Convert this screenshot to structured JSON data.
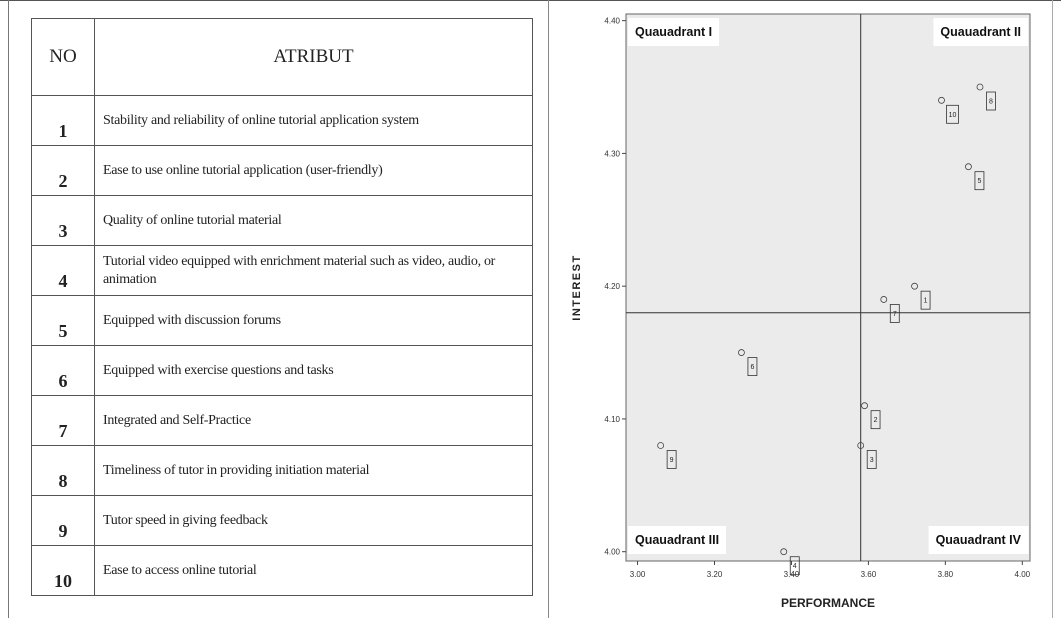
{
  "table": {
    "header_no": "NO",
    "header_attribute": "ATRIBUT",
    "rows": [
      {
        "no": "1",
        "attribute": "Stability and reliability of online tutorial application system"
      },
      {
        "no": "2",
        "attribute": "Ease to use online tutorial application (user-friendly)"
      },
      {
        "no": "3",
        "attribute": "Quality of  online tutorial material"
      },
      {
        "no": "4",
        "attribute": "Tutorial video equipped with enrichment material such as video, audio, or animation"
      },
      {
        "no": "5",
        "attribute": "Equipped with discussion forums"
      },
      {
        "no": "6",
        "attribute": "Equipped with exercise questions and tasks"
      },
      {
        "no": "7",
        "attribute": "Integrated and Self-Practice"
      },
      {
        "no": "8",
        "attribute": "Timeliness of tutor in providing initiation material"
      },
      {
        "no": "9",
        "attribute": "Tutor speed in giving feedback"
      },
      {
        "no": "10",
        "attribute": "Ease to access  online tutorial"
      }
    ]
  },
  "chart_data": {
    "type": "scatter",
    "title": "",
    "xlabel": "PERFORMANCE",
    "ylabel": "INTEREST",
    "xlim": [
      2.97,
      4.02
    ],
    "ylim": [
      3.993,
      4.405
    ],
    "xticks": [
      "3.00",
      "3.20",
      "3.40",
      "3.60",
      "3.80",
      "4.00"
    ],
    "yticks": [
      "4.00",
      "4.10",
      "4.20",
      "4.30",
      "4.40"
    ],
    "xtick_values": [
      3.0,
      3.2,
      3.4,
      3.6,
      3.8,
      4.0
    ],
    "ytick_values": [
      4.0,
      4.1,
      4.2,
      4.3,
      4.4
    ],
    "reference_lines": {
      "x": 3.58,
      "y": 4.18
    },
    "quadrants": [
      {
        "label": "Quauadrant I",
        "corner": "top-left"
      },
      {
        "label": "Quauadrant II",
        "corner": "top-right"
      },
      {
        "label": "Quauadrant III",
        "corner": "bottom-left"
      },
      {
        "label": "Quauadrant IV",
        "corner": "bottom-right"
      }
    ],
    "points": [
      {
        "label": "10",
        "x": 3.79,
        "y": 4.34
      },
      {
        "label": "8",
        "x": 3.89,
        "y": 4.35
      },
      {
        "label": "5",
        "x": 3.86,
        "y": 4.29
      },
      {
        "label": "7",
        "x": 3.64,
        "y": 4.19
      },
      {
        "label": "1",
        "x": 3.72,
        "y": 4.2
      },
      {
        "label": "6",
        "x": 3.27,
        "y": 4.15
      },
      {
        "label": "2",
        "x": 3.59,
        "y": 4.11
      },
      {
        "label": "3",
        "x": 3.58,
        "y": 4.08
      },
      {
        "label": "9",
        "x": 3.06,
        "y": 4.08
      },
      {
        "label": "4",
        "x": 3.38,
        "y": 4.0
      }
    ],
    "grid": false,
    "legend": "none",
    "plot_background": "#ebebeb"
  }
}
